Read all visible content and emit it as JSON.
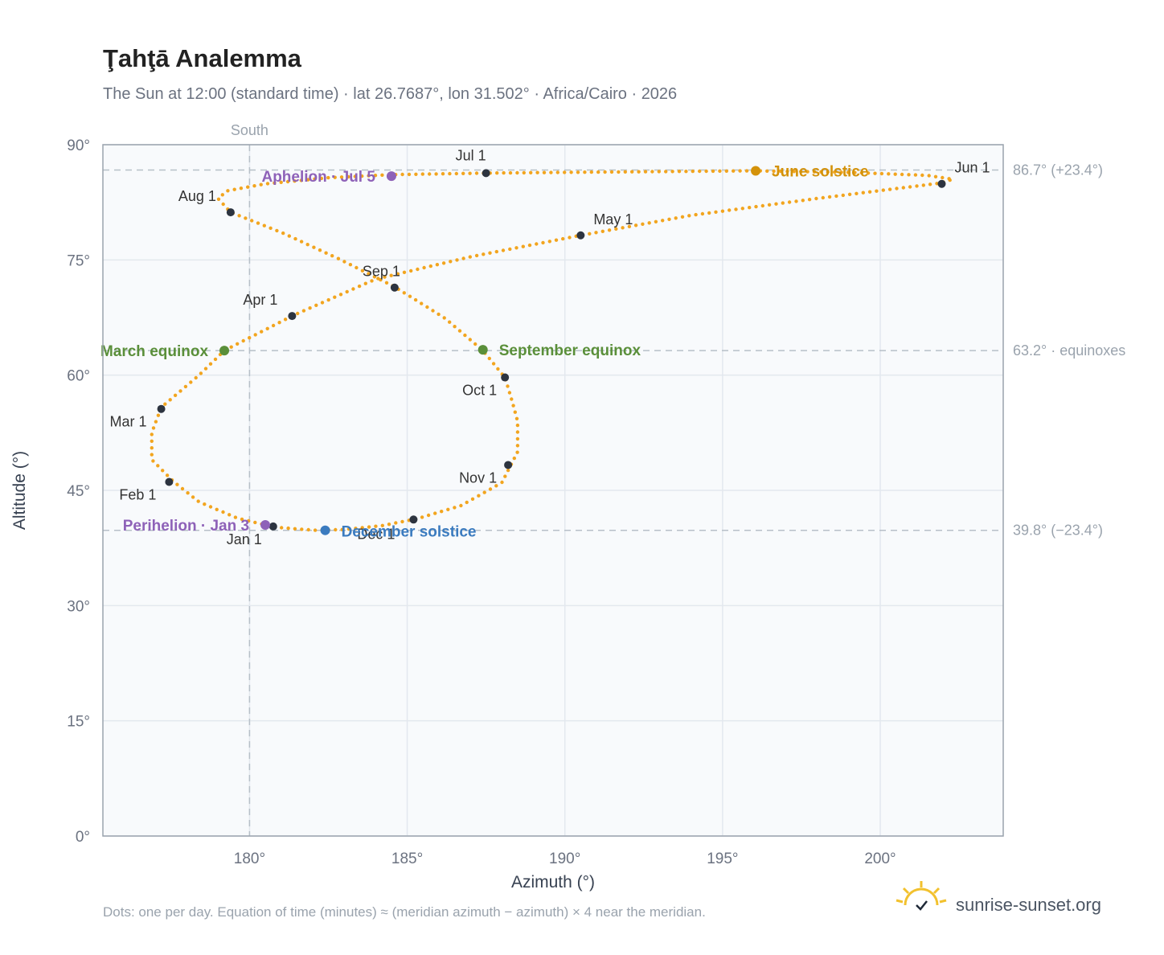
{
  "header": {
    "title": "Ţahţā Analemma",
    "subtitle": "The Sun at 12:00 (standard time) · lat 26.7687°, lon 31.502° · Africa/Cairo · 2026"
  },
  "chart_data": {
    "type": "scatter",
    "xlabel": "Azimuth (°)",
    "ylabel": "Altitude (°)",
    "xlim": [
      175.35,
      203.9
    ],
    "ylim": [
      0,
      90
    ],
    "x_ticks": [
      {
        "value": 180,
        "label": "180°"
      },
      {
        "value": 185,
        "label": "185°"
      },
      {
        "value": 190,
        "label": "190°"
      },
      {
        "value": 195,
        "label": "195°"
      },
      {
        "value": 200,
        "label": "200°"
      }
    ],
    "y_ticks": [
      {
        "value": 0,
        "label": "0°"
      },
      {
        "value": 15,
        "label": "15°"
      },
      {
        "value": 30,
        "label": "30°"
      },
      {
        "value": 45,
        "label": "45°"
      },
      {
        "value": 60,
        "label": "60°"
      },
      {
        "value": 75,
        "label": "75°"
      },
      {
        "value": 90,
        "label": "90°"
      }
    ],
    "grid": true,
    "meridian": {
      "azimuth": 180,
      "label": "South"
    },
    "reference_lines": [
      {
        "altitude": 86.7,
        "label": "86.7° (+23.4°)"
      },
      {
        "altitude": 63.2,
        "label": "63.2° · equinoxes"
      },
      {
        "altitude": 39.8,
        "label": "39.8° (−23.4°)"
      }
    ],
    "series_color": "#f2a51f",
    "daily_path": [
      [
        180.8,
        40.2
      ],
      [
        182.1,
        39.8
      ],
      [
        183.0,
        39.9
      ],
      [
        184.2,
        40.4
      ],
      [
        185.3,
        41.3
      ],
      [
        186.7,
        43.0
      ],
      [
        188.0,
        46.0
      ],
      [
        188.5,
        50.0
      ],
      [
        188.5,
        54.0
      ],
      [
        188.3,
        57.0
      ],
      [
        188.1,
        59.7
      ],
      [
        187.4,
        63.2
      ],
      [
        186.2,
        67.4
      ],
      [
        184.6,
        71.5
      ],
      [
        182.8,
        75.2
      ],
      [
        181.0,
        78.6
      ],
      [
        179.4,
        81.2
      ],
      [
        179.0,
        83.0
      ],
      [
        179.3,
        84.0
      ],
      [
        180.5,
        84.9
      ],
      [
        182.5,
        85.7
      ],
      [
        184.5,
        86.1
      ],
      [
        187.5,
        86.3
      ],
      [
        190.0,
        86.4
      ],
      [
        193.0,
        86.5
      ],
      [
        196.0,
        86.6
      ],
      [
        199.0,
        86.4
      ],
      [
        201.5,
        86.0
      ],
      [
        202.3,
        85.5
      ],
      [
        201.9,
        85.0
      ],
      [
        198.0,
        83.0
      ],
      [
        194.0,
        80.8
      ],
      [
        190.5,
        78.2
      ],
      [
        187.0,
        75.4
      ],
      [
        184.0,
        72.5
      ],
      [
        181.4,
        67.8
      ],
      [
        179.2,
        63.2
      ],
      [
        178.4,
        60.0
      ],
      [
        177.2,
        55.8
      ],
      [
        176.9,
        52.5
      ],
      [
        176.9,
        49.0
      ],
      [
        177.6,
        46.1
      ],
      [
        178.4,
        43.5
      ],
      [
        179.6,
        41.4
      ],
      [
        180.8,
        40.2
      ]
    ],
    "month_markers": [
      {
        "label": "Jan 1",
        "az": 180.75,
        "alt": 40.3
      },
      {
        "label": "Feb 1",
        "az": 177.45,
        "alt": 46.1
      },
      {
        "label": "Mar 1",
        "az": 177.2,
        "alt": 55.6
      },
      {
        "label": "Apr 1",
        "az": 181.35,
        "alt": 67.7
      },
      {
        "label": "May 1",
        "az": 190.5,
        "alt": 78.2
      },
      {
        "label": "Jun 1",
        "az": 201.95,
        "alt": 84.9
      },
      {
        "label": "Jul 1",
        "az": 187.5,
        "alt": 86.3
      },
      {
        "label": "Aug 1",
        "az": 179.4,
        "alt": 81.2
      },
      {
        "label": "Sep 1",
        "az": 184.6,
        "alt": 71.4
      },
      {
        "label": "Oct 1",
        "az": 188.1,
        "alt": 59.7
      },
      {
        "label": "Nov 1",
        "az": 188.2,
        "alt": 48.3
      },
      {
        "label": "Dec 1",
        "az": 185.2,
        "alt": 41.2
      }
    ],
    "events": [
      {
        "label": "March equinox",
        "az": 179.2,
        "alt": 63.2,
        "color": "#5a8f3a"
      },
      {
        "label": "September equinox",
        "az": 187.4,
        "alt": 63.3,
        "color": "#5a8f3a"
      },
      {
        "label": "June solstice",
        "az": 196.05,
        "alt": 86.6,
        "color": "#d4920a"
      },
      {
        "label": "December solstice",
        "az": 182.4,
        "alt": 39.8,
        "color": "#3b7bbf"
      },
      {
        "label": "Aphelion · Jul 5",
        "az": 184.5,
        "alt": 85.9,
        "color": "#8e62b8"
      },
      {
        "label": "Perihelion · Jan 3",
        "az": 180.5,
        "alt": 40.5,
        "color": "#8e62b8"
      }
    ]
  },
  "footer": {
    "note": "Dots: one per day. Equation of time (minutes) ≈ (meridian azimuth − azimuth) × 4 near the meridian.",
    "brand": "sunrise-sunset.org",
    "brand_icon": "sunrise-logo-icon"
  }
}
